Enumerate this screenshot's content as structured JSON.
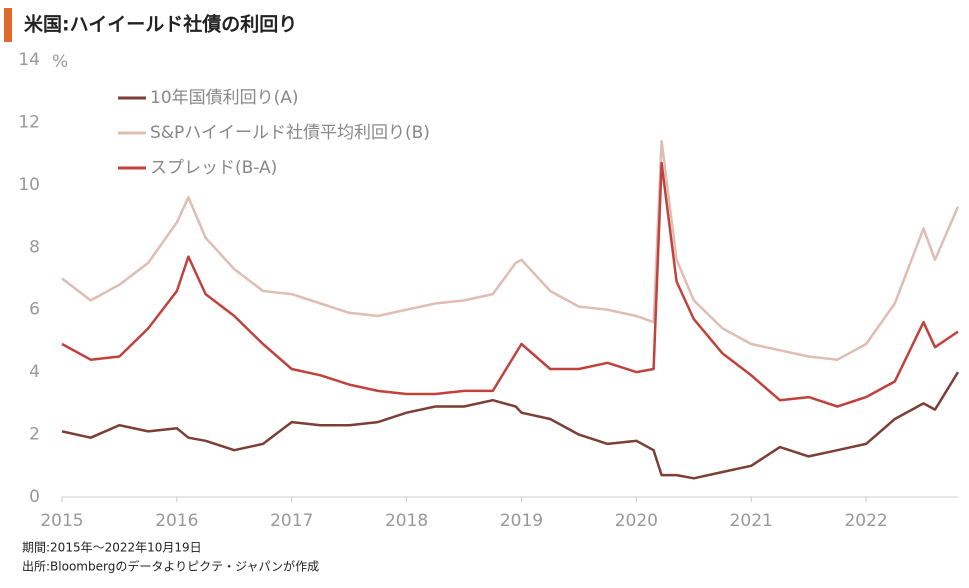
{
  "chart_data": {
    "type": "line",
    "title": "米国:ハイイールド社債の利回り",
    "y_label": "%",
    "notes": [
      "期間:2015年～2022年10月19日",
      "出所:Bloombergのデータよりピクテ・ジャパンが作成"
    ],
    "x": [
      2015.0,
      2015.25,
      2015.5,
      2015.75,
      2016.0,
      2016.1,
      2016.25,
      2016.5,
      2016.75,
      2017.0,
      2017.25,
      2017.5,
      2017.75,
      2018.0,
      2018.25,
      2018.5,
      2018.75,
      2018.95,
      2019.0,
      2019.25,
      2019.5,
      2019.75,
      2020.0,
      2020.15,
      2020.22,
      2020.35,
      2020.5,
      2020.75,
      2021.0,
      2021.25,
      2021.5,
      2021.75,
      2022.0,
      2022.25,
      2022.5,
      2022.6,
      2022.8
    ],
    "series": [
      {
        "name": "10年国債利回り(A)",
        "color": "#7b3f35",
        "values": [
          2.1,
          1.9,
          2.3,
          2.1,
          2.2,
          1.9,
          1.8,
          1.5,
          1.7,
          2.4,
          2.3,
          2.3,
          2.4,
          2.7,
          2.9,
          2.9,
          3.1,
          2.9,
          2.7,
          2.5,
          2.0,
          1.7,
          1.8,
          1.5,
          0.7,
          0.7,
          0.6,
          0.8,
          1.0,
          1.6,
          1.3,
          1.5,
          1.7,
          2.5,
          3.0,
          2.8,
          4.0
        ]
      },
      {
        "name": "S&Pハイイールド社債平均利回り(B)",
        "color": "#e0bdb3",
        "values": [
          7.0,
          6.3,
          6.8,
          7.5,
          8.8,
          9.6,
          8.3,
          7.3,
          6.6,
          6.5,
          6.2,
          5.9,
          5.8,
          6.0,
          6.2,
          6.3,
          6.5,
          7.5,
          7.6,
          6.6,
          6.1,
          6.0,
          5.8,
          5.6,
          11.4,
          7.6,
          6.3,
          5.4,
          4.9,
          4.7,
          4.5,
          4.4,
          4.9,
          6.2,
          8.6,
          7.6,
          9.3
        ]
      },
      {
        "name": "スプレッド(B-A)",
        "color": "#c0423c",
        "values": [
          4.9,
          4.4,
          4.5,
          5.4,
          6.6,
          7.7,
          6.5,
          5.8,
          4.9,
          4.1,
          3.9,
          3.6,
          3.4,
          3.3,
          3.3,
          3.4,
          3.4,
          4.6,
          4.9,
          4.1,
          4.1,
          4.3,
          4.0,
          4.1,
          10.7,
          6.9,
          5.7,
          4.6,
          3.9,
          3.1,
          3.2,
          2.9,
          3.2,
          3.7,
          5.6,
          4.8,
          5.3
        ]
      }
    ],
    "xlim": [
      2015,
      2022.8
    ],
    "xticks": [
      2015,
      2016,
      2017,
      2018,
      2019,
      2020,
      2021,
      2022
    ],
    "ylim": [
      0,
      14
    ],
    "yticks": [
      0,
      2,
      4,
      6,
      8,
      10,
      12,
      14
    ],
    "grid": false
  }
}
